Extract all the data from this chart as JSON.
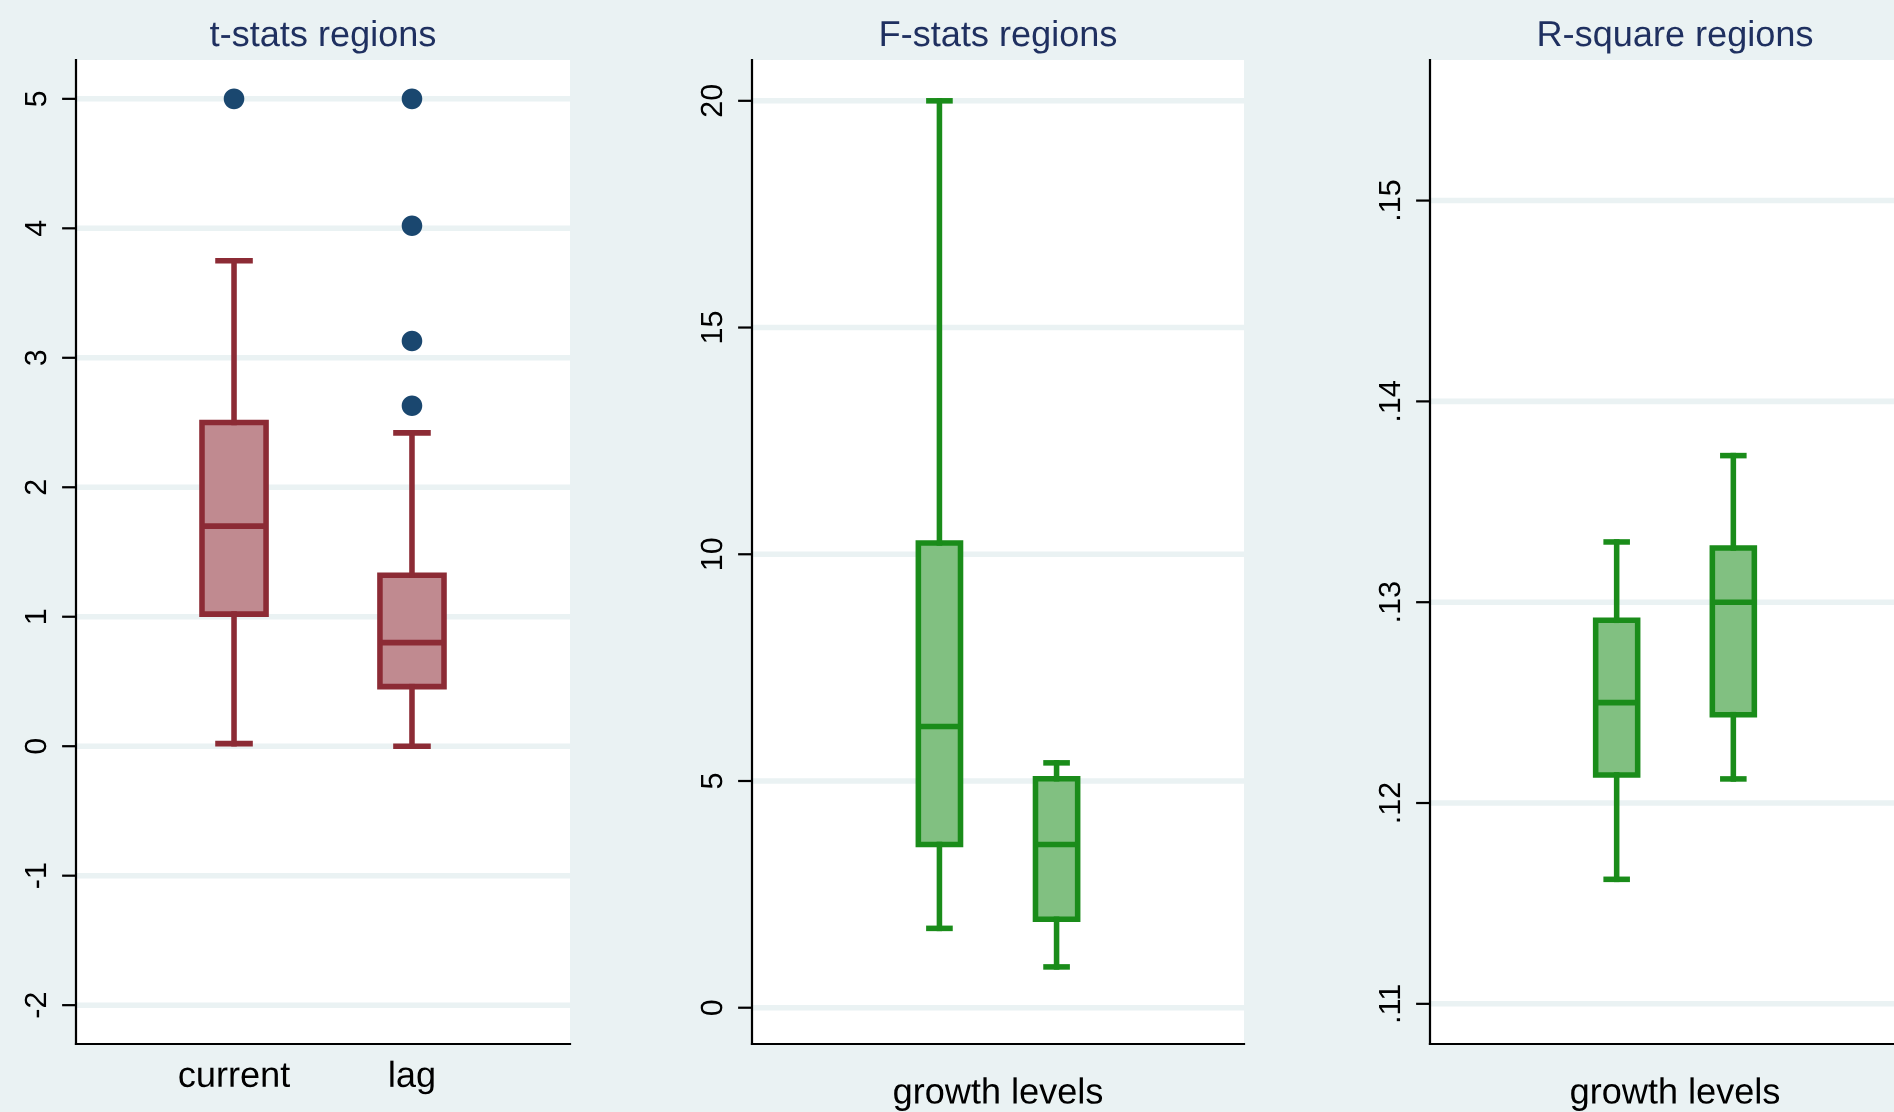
{
  "chart_data": [
    {
      "type": "box",
      "title": "t-stats regions",
      "categories": [
        "current",
        "lag"
      ],
      "color": "#8c2b35",
      "boxes": [
        {
          "low": 0.02,
          "q1": 1.02,
          "median": 1.7,
          "q3": 2.5,
          "high": 3.75
        },
        {
          "low": 0.0,
          "q1": 0.46,
          "median": 0.8,
          "q3": 1.32,
          "high": 2.42
        }
      ],
      "series": [
        {
          "type": "scatter",
          "color": "#1a476f",
          "x": [
            "current",
            "lag",
            "lag",
            "lag",
            "lag"
          ],
          "values": [
            5,
            2.63,
            3.13,
            4.02,
            5
          ]
        }
      ],
      "marker": "circle",
      "ylim": [
        -2.3,
        5.3
      ],
      "yticks": [
        -2,
        -1,
        0,
        1,
        2,
        3,
        4,
        5
      ],
      "grid": "y",
      "legend": false
    },
    {
      "type": "box",
      "title": "F-stats regions",
      "xlabel": "growth levels",
      "categories": [
        null,
        null
      ],
      "color": "#1a8c1a",
      "boxes": [
        {
          "low": 1.75,
          "q1": 3.6,
          "median": 6.2,
          "q3": 10.25,
          "high": 20
        },
        {
          "low": 0.9,
          "q1": 1.95,
          "median": 3.6,
          "q3": 5.05,
          "high": 5.4
        }
      ],
      "ylim": [
        -0.8,
        20.9
      ],
      "yticks": [
        0,
        5,
        10,
        15,
        20
      ],
      "grid": "y",
      "legend": false
    },
    {
      "type": "box",
      "title": "R-square regions",
      "xlabel": "growth levels",
      "categories": [
        null,
        null
      ],
      "color": "#1a8c1a",
      "boxes": [
        {
          "low": 0.1162,
          "q1": 0.1214,
          "median": 0.125,
          "q3": 0.1291,
          "high": 0.133
        },
        {
          "low": 0.1212,
          "q1": 0.1244,
          "median": 0.13,
          "q3": 0.1327,
          "high": 0.1373
        }
      ],
      "ylim": [
        0.108,
        0.157
      ],
      "yticks": [
        {
          "value": 0.11,
          "label": ".11"
        },
        {
          "value": 0.12,
          "label": ".12"
        },
        {
          "value": 0.13,
          "label": ".13"
        },
        {
          "value": 0.14,
          "label": ".14"
        },
        {
          "value": 0.15,
          "label": ".15"
        }
      ],
      "grid": "y",
      "legend": false
    }
  ]
}
